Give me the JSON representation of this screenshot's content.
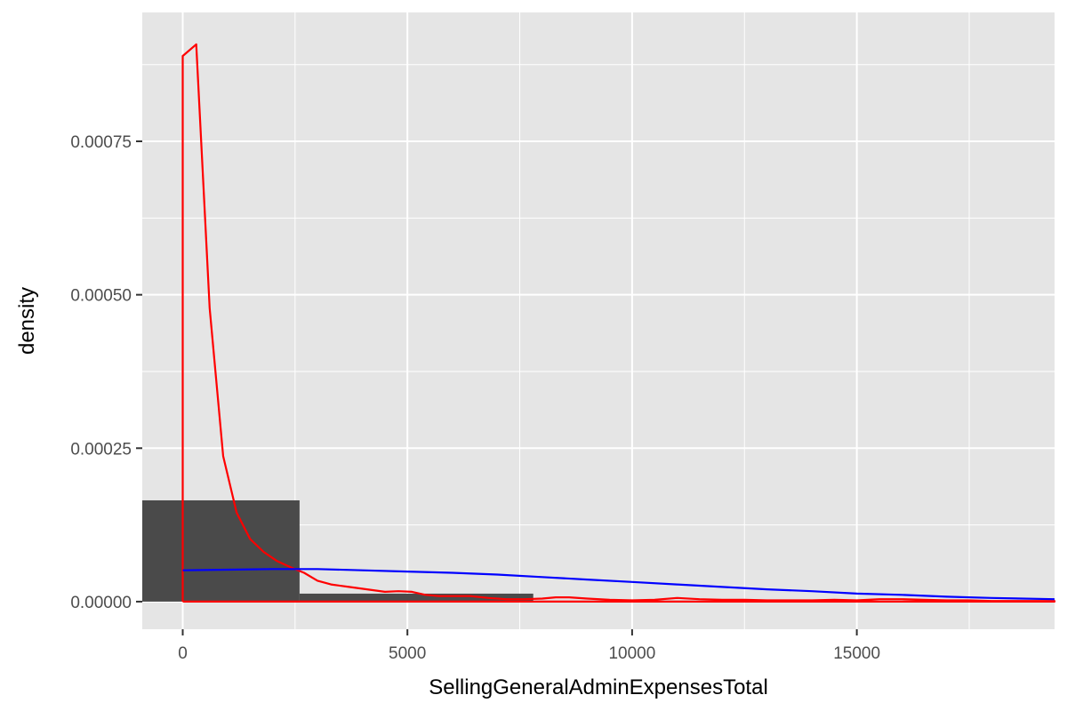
{
  "chart_data": {
    "type": "histogram",
    "xlabel": "SellingGeneralAdminExpensesTotal",
    "ylabel": "density",
    "xlim": [
      -900,
      19400
    ],
    "ylim": [
      -4.5e-05,
      0.00096
    ],
    "x_ticks": [
      {
        "value": 0,
        "label": "0"
      },
      {
        "value": 5000,
        "label": "5000"
      },
      {
        "value": 10000,
        "label": "10000"
      },
      {
        "value": 15000,
        "label": "15000"
      }
    ],
    "y_ticks": [
      {
        "value": 0,
        "label": "0.00000"
      },
      {
        "value": 0.00025,
        "label": "0.00025"
      },
      {
        "value": 0.0005,
        "label": "0.00050"
      },
      {
        "value": 0.00075,
        "label": "0.00075"
      }
    ],
    "grid": true,
    "bars": [
      {
        "x0": -2600,
        "x1": 2600,
        "value": 0.000165
      },
      {
        "x0": 2600,
        "x1": 7800,
        "value": 1.3e-05
      },
      {
        "x0": 7800,
        "x1": 13000,
        "value": 1.5e-06
      },
      {
        "x0": 13000,
        "x1": 18200,
        "value": 8e-07
      },
      {
        "x0": 18200,
        "x1": 23400,
        "value": 4e-07
      }
    ],
    "series": [
      {
        "kind": "kernel-density",
        "color": "#ff0000",
        "x": [
          0,
          0,
          300,
          600,
          900,
          1200,
          1500,
          1800,
          2100,
          2400,
          2700,
          3000,
          3300,
          3700,
          4100,
          4500,
          4800,
          5100,
          5400,
          5700,
          6000,
          6400,
          6800,
          7200,
          7600,
          8000,
          8300,
          8600,
          9000,
          9500,
          10000,
          10500,
          11000,
          11500,
          12000,
          12500,
          13000,
          13500,
          14000,
          14500,
          15000,
          15500,
          16000,
          16500,
          17000,
          17500,
          18000,
          18500,
          19000,
          19400,
          19400,
          0
        ],
        "y": [
          0,
          0.000889,
          0.000908,
          0.000478,
          0.000237,
          0.000145,
          0.000102,
          8.1e-05,
          6.6e-05,
          5.6e-05,
          4.7e-05,
          3.4e-05,
          2.8e-05,
          2.4e-05,
          2e-05,
          1.6e-05,
          1.7e-05,
          1.6e-05,
          1.1e-05,
          9e-06,
          9e-06,
          9e-06,
          6e-06,
          4e-06,
          4e-06,
          5e-06,
          7e-06,
          7e-06,
          5e-06,
          3e-06,
          2e-06,
          3e-06,
          6e-06,
          4e-06,
          3e-06,
          3e-06,
          2e-06,
          2e-06,
          2e-06,
          3e-06,
          2e-06,
          4e-06,
          4e-06,
          3e-06,
          2e-06,
          2e-06,
          1e-06,
          1e-06,
          1e-06,
          1e-06,
          0,
          0
        ]
      },
      {
        "kind": "normal-density",
        "color": "#0000ff",
        "x": [
          0,
          1000,
          2000,
          3000,
          4000,
          5000,
          6000,
          7000,
          8000,
          9000,
          10000,
          11000,
          12000,
          13000,
          14000,
          15000,
          16000,
          17000,
          18000,
          19400
        ],
        "y": [
          5.1e-05,
          5.2e-05,
          5.3e-05,
          5.3e-05,
          5.1e-05,
          4.9e-05,
          4.7e-05,
          4.4e-05,
          4e-05,
          3.6e-05,
          3.2e-05,
          2.8e-05,
          2.4e-05,
          2e-05,
          1.7e-05,
          1.3e-05,
          1.1e-05,
          8e-06,
          6e-06,
          4e-06
        ]
      }
    ]
  }
}
